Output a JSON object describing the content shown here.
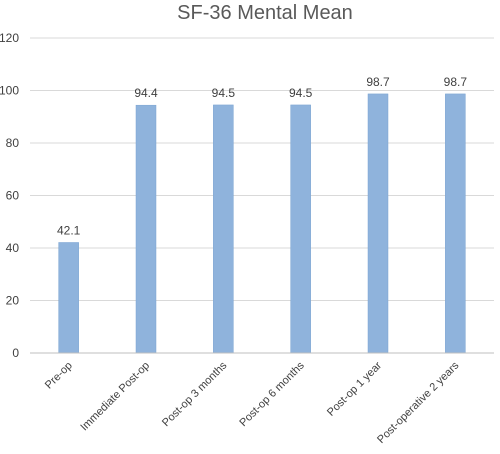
{
  "chart_data": {
    "type": "bar",
    "title": "SF-36 Mental Mean",
    "xlabel": "",
    "ylabel": "",
    "categories": [
      "Pre-op",
      "Immediate Post-op",
      "Post-op 3 months",
      "Post-op 6 months",
      "Post-op 1 year",
      "Post-operative  2 years"
    ],
    "values": [
      42.1,
      94.4,
      94.5,
      94.5,
      98.7,
      98.7
    ],
    "data_labels": [
      "42.1",
      "94.4",
      "94.5",
      "94.5",
      "98.7",
      "98.7"
    ],
    "ylim": [
      0,
      120
    ],
    "yticks": [
      0,
      20,
      40,
      60,
      80,
      100,
      120
    ],
    "ytick_labels": [
      "0",
      "20",
      "40",
      "60",
      "80",
      "100",
      "120"
    ],
    "grid": true,
    "legend": "none",
    "colors": {
      "bar_fill": "#8fb3dc",
      "bar_stroke": "#7aa3d1",
      "grid": "#d9d9d9",
      "axis": "#bfbfbf"
    }
  }
}
